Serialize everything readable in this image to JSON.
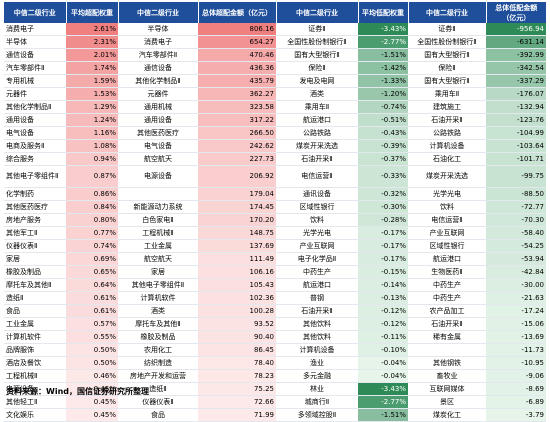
{
  "header": {
    "col1": "中信二级行业",
    "col2": "平均超配权重",
    "col3": "中信二级行业",
    "col4": "总体超配金额（亿元）",
    "col5": "中信二级行业",
    "col6": "平均低配权重",
    "col7": "中信二级行业",
    "col8": "总体低配金额（亿元）"
  },
  "source": "资料来源：Wind，国信证券研究所整理",
  "colors": {
    "header_bg": "#1f4e9a",
    "overweight_high": "#f08080",
    "underweight_high": "#2e8b57",
    "pale_red": "#fde9e9",
    "pale_green": "#e6f4ea"
  },
  "chart_data": {
    "type": "table",
    "columns": [
      "中信二级行业",
      "平均超配权重",
      "中信二级行业",
      "总体超配金额（亿元）",
      "中信二级行业",
      "平均低配权重",
      "中信二级行业",
      "总体低配金额（亿元）"
    ],
    "rows": [
      [
        "消费电子",
        "2.61%",
        "半导体",
        "806.16",
        "证券Ⅱ",
        "-3.43%",
        "证券Ⅱ",
        "-956.94"
      ],
      [
        "半导体",
        "2.31%",
        "消费电子",
        "654.27",
        "全国性股份制银行Ⅱ",
        "-2.77%",
        "全国性股份制银行Ⅱ",
        "-631.14"
      ],
      [
        "通信设备",
        "2.01%",
        "汽车零部件Ⅱ",
        "470.46",
        "国有大型银行Ⅱ",
        "-1.51%",
        "国有大型银行Ⅱ",
        "-392.99"
      ],
      [
        "汽车零部件Ⅱ",
        "1.74%",
        "通信设备",
        "436.36",
        "保险Ⅱ",
        "-1.42%",
        "保险Ⅱ",
        "-342.54"
      ],
      [
        "专用机械",
        "1.59%",
        "其他化学制品Ⅱ",
        "435.79",
        "发电及电网",
        "-1.33%",
        "国有大型银行Ⅱ",
        "-337.29"
      ],
      [
        "元器件",
        "1.53%",
        "元器件",
        "362.27",
        "酒类",
        "-1.20%",
        "乘用车Ⅱ",
        "-176.07"
      ],
      [
        "其他化学制品Ⅱ",
        "1.29%",
        "通用机械",
        "323.58",
        "乘用车Ⅱ",
        "-0.74%",
        "建筑施工",
        "-132.94"
      ],
      [
        "通用设备",
        "1.24%",
        "通用设备",
        "317.22",
        "航运港口",
        "-0.51%",
        "石油开采Ⅱ",
        "-123.76"
      ],
      [
        "电气设备",
        "1.16%",
        "其他医药医疗",
        "266.50",
        "公路铁路",
        "-0.43%",
        "公路铁路",
        "-104.99"
      ],
      [
        "电商及服务Ⅱ",
        "1.08%",
        "电气设备",
        "242.62",
        "煤炭开采洗选",
        "-0.39%",
        "计算机设备",
        "-103.64"
      ],
      [
        "综合服务",
        "0.94%",
        "航空航天",
        "227.73",
        "石油开采Ⅱ",
        "-0.37%",
        "石油化工",
        "-101.71"
      ],
      [
        "其他电子零组件Ⅱ",
        "0.87%",
        "电源设备",
        "206.92",
        "电信运营Ⅱ",
        "-0.33%",
        "煤炭开采洗选",
        "-99.75"
      ],
      [
        "化学制药",
        "0.86%",
        "",
        "179.04",
        "通讯设备",
        "-0.32%",
        "光学光电",
        "-88.50"
      ],
      [
        "其他医药医疗",
        "0.84%",
        "新能源动力系统",
        "174.45",
        "区域性银行",
        "-0.30%",
        "饮料",
        "-72.77"
      ],
      [
        "房地产服务",
        "0.80%",
        "白色家电Ⅱ",
        "170.20",
        "饮料",
        "-0.28%",
        "电信运营Ⅱ",
        "-70.30"
      ],
      [
        "其他军工Ⅱ",
        "0.77%",
        "工程机械Ⅱ",
        "148.75",
        "光学光电",
        "-0.17%",
        "产业互联网",
        "-58.40"
      ],
      [
        "仪器仪表Ⅱ",
        "0.74%",
        "工业金属",
        "137.69",
        "产业互联网",
        "-0.17%",
        "区域性银行",
        "-54.25"
      ],
      [
        "家居",
        "0.69%",
        "航空航天",
        "111.49",
        "电子化学品Ⅱ",
        "-0.17%",
        "航运港口",
        "-53.94"
      ],
      [
        "橡胶及制品",
        "0.65%",
        "家居",
        "106.16",
        "中药生产",
        "-0.15%",
        "生物医药Ⅱ",
        "-42.84"
      ],
      [
        "摩托车及其他Ⅱ",
        "0.64%",
        "其他电子零组件Ⅱ",
        "105.43",
        "航运港口",
        "-0.14%",
        "中药生产",
        "-30.00"
      ],
      [
        "造纸Ⅱ",
        "0.61%",
        "计算机软件",
        "102.36",
        "普钢",
        "-0.13%",
        "中药生产",
        "-21.63"
      ],
      [
        "食品",
        "0.61%",
        "酒类",
        "100.28",
        "石油开采Ⅱ",
        "-0.12%",
        "农产品加工",
        "-17.24"
      ],
      [
        "工业金属",
        "0.57%",
        "摩托车及其他Ⅱ",
        "93.52",
        "其他饮料",
        "-0.12%",
        "石油开采Ⅱ",
        "-15.06"
      ],
      [
        "计算机软件",
        "0.55%",
        "橡胶及制品",
        "90.40",
        "其他饮料",
        "-0.11%",
        "稀有金属",
        "-13.69"
      ],
      [
        "品牌服饰",
        "0.50%",
        "农用化工",
        "86.45",
        "计算机设备",
        "-0.10%",
        "",
        "-11.73"
      ],
      [
        "酒店及餐饮",
        "0.50%",
        "纺织制造",
        "78.40",
        "渔业",
        "-0.04%",
        "其他钢铁",
        "-10.95"
      ],
      [
        "工程机械Ⅱ",
        "0.46%",
        "房地产开发和运营",
        "78.23",
        "多元金融",
        "-0.04%",
        "畜牧业",
        "-9.06"
      ],
      [
        "电源设备",
        "0.45%",
        "造纸Ⅱ",
        "75.25",
        "林业",
        "-3.43%",
        "互联网媒体",
        "-8.69"
      ],
      [
        "其他轻工Ⅱ",
        "0.45%",
        "仪器仪表Ⅱ",
        "72.66",
        "城商行Ⅱ",
        "-2.77%",
        "景区",
        "-6.89"
      ],
      [
        "文化娱乐",
        "0.45%",
        "食品",
        "71.99",
        "多领域控股Ⅱ",
        "-1.51%",
        "煤炭化工",
        "-3.79"
      ]
    ]
  }
}
